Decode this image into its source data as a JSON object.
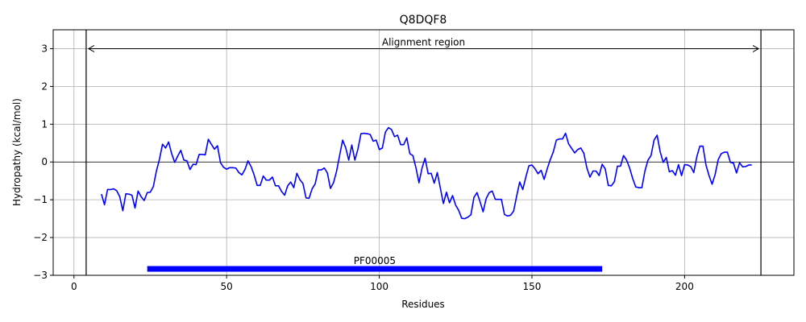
{
  "chart_data": {
    "type": "line",
    "title": "Q8DQF8",
    "xlabel": "Residues",
    "ylabel": "Hydropathy (kcal/mol)",
    "xlim": [
      -6.8,
      235.8
    ],
    "ylim": [
      -3,
      3.5
    ],
    "x_ticks": [
      0,
      50,
      100,
      150,
      200
    ],
    "y_ticks": [
      -3,
      -2,
      -1,
      0,
      1,
      2,
      3
    ],
    "x_tick_labels": [
      "0",
      "50",
      "100",
      "150",
      "200"
    ],
    "y_tick_labels": [
      "−3",
      "−2",
      "−1",
      "0",
      "1",
      "2",
      "3"
    ],
    "grid": true,
    "colors": {
      "line": "#0000ff",
      "domain": "#0000ff",
      "axes": "#000000",
      "grid": "#b0b0b0"
    },
    "alignment_region": {
      "label": "Alignment region",
      "start": 4,
      "end": 225,
      "y": 3
    },
    "domains": [
      {
        "label": "PF00005",
        "start": 24,
        "end": 173,
        "y": -2.83
      }
    ],
    "series": [
      {
        "x_start": 9,
        "values": [
          -0.85,
          -1.13,
          -0.73,
          -0.73,
          -0.71,
          -0.76,
          -0.92,
          -1.29,
          -0.84,
          -0.85,
          -0.88,
          -1.22,
          -0.77,
          -0.92,
          -1.02,
          -0.81,
          -0.8,
          -0.65,
          -0.24,
          0.07,
          0.47,
          0.37,
          0.53,
          0.22,
          -0.01,
          0.16,
          0.31,
          0.05,
          0.03,
          -0.2,
          -0.06,
          -0.07,
          0.2,
          0.2,
          0.19,
          0.6,
          0.47,
          0.34,
          0.43,
          -0.02,
          -0.14,
          -0.19,
          -0.15,
          -0.15,
          -0.16,
          -0.28,
          -0.34,
          -0.2,
          0.03,
          -0.12,
          -0.34,
          -0.62,
          -0.62,
          -0.37,
          -0.48,
          -0.48,
          -0.4,
          -0.63,
          -0.63,
          -0.78,
          -0.88,
          -0.63,
          -0.53,
          -0.68,
          -0.3,
          -0.47,
          -0.57,
          -0.95,
          -0.96,
          -0.71,
          -0.58,
          -0.21,
          -0.21,
          -0.16,
          -0.29,
          -0.7,
          -0.55,
          -0.25,
          0.17,
          0.58,
          0.38,
          0.05,
          0.45,
          0.05,
          0.34,
          0.75,
          0.76,
          0.75,
          0.73,
          0.55,
          0.58,
          0.33,
          0.37,
          0.79,
          0.91,
          0.86,
          0.67,
          0.71,
          0.46,
          0.46,
          0.64,
          0.22,
          0.17,
          -0.15,
          -0.55,
          -0.16,
          0.1,
          -0.31,
          -0.3,
          -0.56,
          -0.28,
          -0.69,
          -1.1,
          -0.8,
          -1.08,
          -0.89,
          -1.14,
          -1.28,
          -1.49,
          -1.5,
          -1.46,
          -1.4,
          -0.94,
          -0.81,
          -1.05,
          -1.32,
          -0.97,
          -0.81,
          -0.77,
          -0.99,
          -0.99,
          -0.99,
          -1.39,
          -1.43,
          -1.41,
          -1.3,
          -0.9,
          -0.53,
          -0.73,
          -0.4,
          -0.1,
          -0.08,
          -0.18,
          -0.31,
          -0.22,
          -0.46,
          -0.18,
          0.06,
          0.27,
          0.58,
          0.61,
          0.61,
          0.76,
          0.48,
          0.36,
          0.24,
          0.33,
          0.37,
          0.23,
          -0.16,
          -0.4,
          -0.24,
          -0.24,
          -0.36,
          -0.06,
          -0.18,
          -0.62,
          -0.63,
          -0.52,
          -0.11,
          -0.11,
          0.17,
          0.05,
          -0.16,
          -0.44,
          -0.66,
          -0.68,
          -0.68,
          -0.24,
          0.05,
          0.17,
          0.58,
          0.71,
          0.27,
          -0.01,
          0.12,
          -0.26,
          -0.23,
          -0.35,
          -0.07,
          -0.36,
          -0.07,
          -0.08,
          -0.12,
          -0.28,
          0.14,
          0.42,
          0.42,
          -0.08,
          -0.36,
          -0.59,
          -0.33,
          0.06,
          0.22,
          0.26,
          0.26,
          -0.01,
          -0.03,
          -0.29,
          -0.02,
          -0.13,
          -0.12,
          -0.08,
          -0.08
        ]
      }
    ]
  }
}
